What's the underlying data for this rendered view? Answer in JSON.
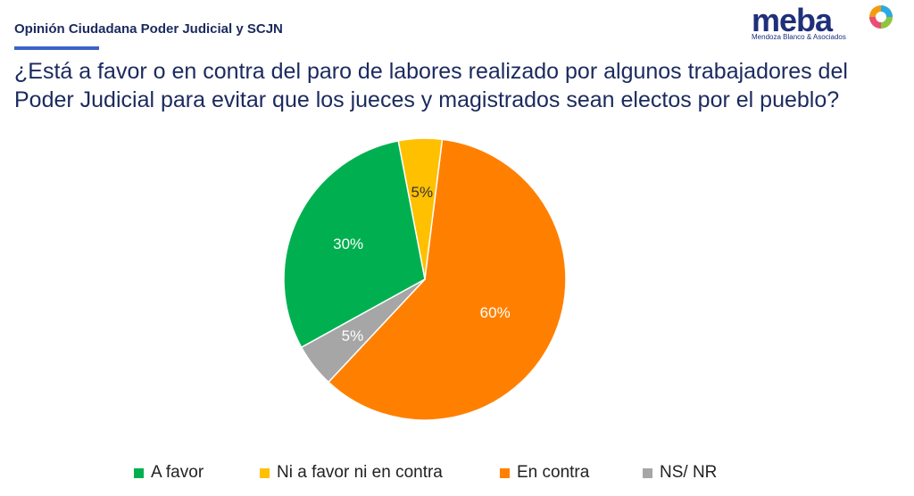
{
  "header": {
    "section_title": "Opinión Ciudadana Poder Judicial y SCJN"
  },
  "logo": {
    "wordmark": "meba",
    "tagline": "Mendoza Blanco & Asociados"
  },
  "question": "¿Está a favor o en contra del paro de labores realizado por algunos trabajadores del Poder Judicial para evitar que los jueces y magistrados sean electos por el pueblo?",
  "chart_data": {
    "type": "pie",
    "title": "",
    "slices": [
      {
        "label": "Ni a favor ni en contra",
        "value": 5,
        "display": "5%",
        "color": "#FFC000"
      },
      {
        "label": "En contra",
        "value": 60,
        "display": "60%",
        "color": "#FF8000"
      },
      {
        "label": "NS/ NR",
        "value": 5,
        "display": "5%",
        "color": "#A6A6A6"
      },
      {
        "label": "A favor",
        "value": 30,
        "display": "30%",
        "color": "#00B050"
      }
    ],
    "legend": [
      {
        "label": "A favor",
        "color": "#00B050"
      },
      {
        "label": "Ni a favor ni en contra",
        "color": "#FFC000"
      },
      {
        "label": "En contra",
        "color": "#FF8000"
      },
      {
        "label": "NS/ NR",
        "color": "#A6A6A6"
      }
    ],
    "legend_placement": "bottom"
  }
}
